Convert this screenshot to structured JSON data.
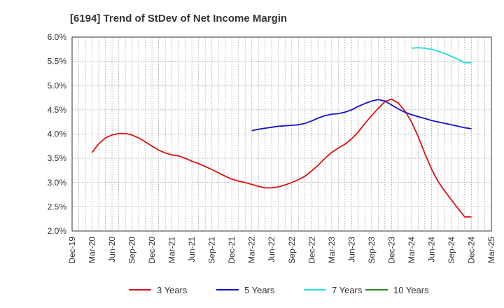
{
  "chart_data": {
    "type": "line",
    "title": "[6194]  Trend of StDev of Net Income Margin",
    "xlabel": "",
    "ylabel": "",
    "x_ticks": [
      "Dec-19",
      "Mar-20",
      "Jun-20",
      "Sep-20",
      "Dec-20",
      "Mar-21",
      "Jun-21",
      "Sep-21",
      "Dec-21",
      "Mar-22",
      "Jun-22",
      "Sep-22",
      "Dec-22",
      "Mar-23",
      "Jun-23",
      "Sep-23",
      "Dec-23",
      "Mar-24",
      "Jun-24",
      "Sep-24",
      "Dec-24",
      "Mar-25"
    ],
    "y_ticks": [
      "2.0%",
      "2.5%",
      "3.0%",
      "3.5%",
      "4.0%",
      "4.5%",
      "5.0%",
      "5.5%",
      "6.0%"
    ],
    "ylim": [
      2.0,
      6.0
    ],
    "grid": true,
    "legend_position": "bottom",
    "series": [
      {
        "name": "3 Years",
        "color": "#dd1111",
        "x": [
          "Mar-20",
          "Apr-20",
          "May-20",
          "Jun-20",
          "Jul-20",
          "Aug-20",
          "Sep-20",
          "Oct-20",
          "Nov-20",
          "Dec-20",
          "Jan-21",
          "Feb-21",
          "Mar-21",
          "Apr-21",
          "May-21",
          "Jun-21",
          "Jul-21",
          "Aug-21",
          "Sep-21",
          "Oct-21",
          "Nov-21",
          "Dec-21",
          "Jan-22",
          "Feb-22",
          "Mar-22",
          "Apr-22",
          "May-22",
          "Jun-22",
          "Jul-22",
          "Aug-22",
          "Sep-22",
          "Oct-22",
          "Nov-22",
          "Dec-22",
          "Jan-23",
          "Feb-23",
          "Mar-23",
          "Apr-23",
          "May-23",
          "Jun-23",
          "Jul-23",
          "Aug-23",
          "Sep-23",
          "Oct-23",
          "Nov-23",
          "Dec-23",
          "Jan-24",
          "Feb-24",
          "Mar-24",
          "Apr-24",
          "May-24",
          "Jun-24",
          "Jul-24",
          "Aug-24",
          "Sep-24",
          "Oct-24",
          "Nov-24",
          "Dec-24"
        ],
        "values": [
          3.62,
          3.8,
          3.92,
          3.98,
          4.01,
          4.01,
          3.98,
          3.92,
          3.84,
          3.75,
          3.67,
          3.61,
          3.57,
          3.55,
          3.5,
          3.44,
          3.39,
          3.33,
          3.27,
          3.2,
          3.13,
          3.07,
          3.03,
          3.0,
          2.96,
          2.92,
          2.89,
          2.89,
          2.91,
          2.95,
          3.0,
          3.06,
          3.13,
          3.24,
          3.36,
          3.5,
          3.62,
          3.71,
          3.79,
          3.9,
          4.04,
          4.22,
          4.38,
          4.53,
          4.67,
          4.72,
          4.64,
          4.48,
          4.25,
          3.95,
          3.6,
          3.28,
          3.02,
          2.82,
          2.64,
          2.46,
          2.29,
          2.29
        ],
        "_note": ""
      },
      {
        "name": "5 Years",
        "color": "#1111cc",
        "x": [
          "Mar-22",
          "Apr-22",
          "May-22",
          "Jun-22",
          "Jul-22",
          "Aug-22",
          "Sep-22",
          "Oct-22",
          "Nov-22",
          "Dec-22",
          "Jan-23",
          "Feb-23",
          "Mar-23",
          "Apr-23",
          "May-23",
          "Jun-23",
          "Jul-23",
          "Aug-23",
          "Sep-23",
          "Oct-23",
          "Nov-23",
          "Dec-23",
          "Jan-24",
          "Feb-24",
          "Mar-24",
          "Apr-24",
          "May-24",
          "Jun-24",
          "Jul-24",
          "Aug-24",
          "Sep-24",
          "Oct-24",
          "Nov-24",
          "Dec-24"
        ],
        "values": [
          4.07,
          4.1,
          4.12,
          4.14,
          4.16,
          4.17,
          4.18,
          4.19,
          4.22,
          4.27,
          4.33,
          4.38,
          4.41,
          4.42,
          4.45,
          4.5,
          4.57,
          4.63,
          4.68,
          4.71,
          4.68,
          4.6,
          4.52,
          4.45,
          4.4,
          4.36,
          4.32,
          4.28,
          4.25,
          4.22,
          4.19,
          4.16,
          4.13,
          4.11
        ]
      },
      {
        "name": "7 Years",
        "color": "#22dddd",
        "x": [
          "Mar-24",
          "Apr-24",
          "May-24",
          "Jun-24",
          "Jul-24",
          "Aug-24",
          "Sep-24",
          "Oct-24",
          "Nov-24",
          "Dec-24"
        ],
        "values": [
          5.77,
          5.78,
          5.77,
          5.75,
          5.71,
          5.66,
          5.6,
          5.54,
          5.47,
          5.47
        ]
      },
      {
        "name": "10 Years",
        "color": "#228822",
        "x": [],
        "values": []
      }
    ]
  }
}
